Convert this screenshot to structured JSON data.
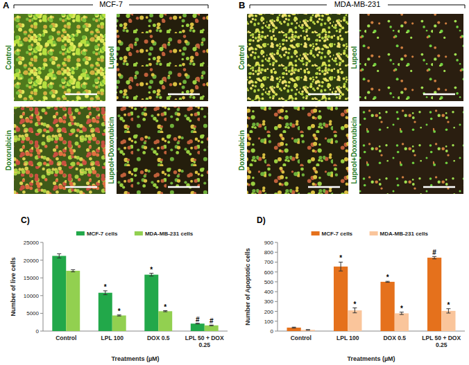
{
  "figure": {
    "panels": [
      {
        "label": "A",
        "title": "MCF-7",
        "images": [
          "Control",
          "Lupeol",
          "Doxorubicin",
          "Lupeol+Doxorubicin"
        ]
      },
      {
        "label": "B",
        "title": "MDA-MB-231",
        "images": [
          "Control",
          "Lupeol",
          "Doxorubicin",
          "Lupeol+Doxorubicin"
        ]
      }
    ],
    "chart_labels": [
      "C)",
      "D)"
    ]
  },
  "chart_data": [
    {
      "type": "bar",
      "x_label": "Treatments (µM)",
      "y_label": "Number of live cells",
      "categories": [
        "Control",
        "LPL 100",
        "DOX 0.5",
        "LPL 50 + DOX 0.25"
      ],
      "series": [
        {
          "name": "MCF-7 cells",
          "color": "#22a84a",
          "values": [
            21200,
            10800,
            15900,
            2100
          ],
          "errors": [
            600,
            550,
            400,
            100
          ],
          "annotations": [
            null,
            "*",
            "*",
            "#"
          ]
        },
        {
          "name": "MDA-MB-231 cells",
          "color": "#92d050",
          "values": [
            17000,
            4400,
            5600,
            1600
          ],
          "errors": [
            300,
            150,
            150,
            100
          ],
          "annotations": [
            null,
            "*",
            "*",
            "#"
          ]
        }
      ],
      "ylim": [
        0,
        25000
      ],
      "yticks": [
        0,
        5000,
        10000,
        15000,
        20000,
        25000
      ],
      "grid": false,
      "legend": "top"
    },
    {
      "type": "bar",
      "x_label": "Treatments (µM)",
      "y_label": "Number of Apoptotic  cells",
      "categories": [
        "Control",
        "LPL 100",
        "DOX 0.5",
        "LPL 50 + DOX 0.25"
      ],
      "series": [
        {
          "name": "MCF-7 cells",
          "color": "#e5711c",
          "values": [
            35,
            655,
            500,
            745
          ],
          "errors": [
            5,
            45,
            5,
            12
          ],
          "annotations": [
            null,
            "*",
            "*",
            "#"
          ]
        },
        {
          "name": "MDA-MB-231 cells",
          "color": "#fac59b",
          "values": [
            12,
            210,
            180,
            205
          ],
          "errors": [
            3,
            25,
            12,
            22
          ],
          "annotations": [
            null,
            "*",
            "*",
            "*"
          ]
        }
      ],
      "ylim": [
        0,
        900
      ],
      "yticks": [
        0,
        100,
        200,
        300,
        400,
        500,
        600,
        700,
        800,
        900
      ],
      "grid": false,
      "legend": "top"
    }
  ]
}
